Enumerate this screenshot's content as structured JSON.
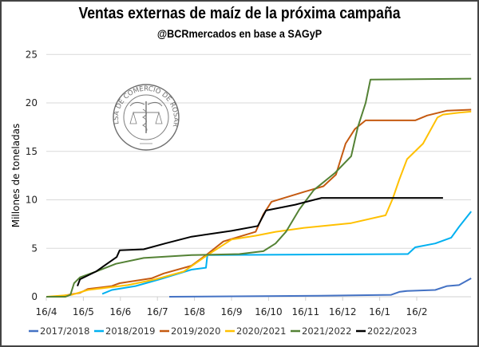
{
  "header": {
    "title": "Ventas externas de maíz de la próxima campaña",
    "subtitle": "@BCRmercados en base a SAGyP"
  },
  "logo": {
    "text": "BOLSA DE COMERCIO DE ROSARIO"
  },
  "chart_data": {
    "type": "line",
    "title": "Ventas externas de maíz de la próxima campaña",
    "subtitle": "@BCRmercados en base a SAGyP",
    "xlabel": "",
    "ylabel": "Millones de toneladas",
    "x_unit": "months since 16/4",
    "xlim": [
      0,
      11.45
    ],
    "ylim": [
      0,
      25
    ],
    "x_ticks": [
      0,
      1,
      2,
      3,
      4,
      5,
      6,
      7,
      8,
      9,
      10
    ],
    "x_tick_labels": [
      "16/4",
      "16/5",
      "16/6",
      "16/7",
      "16/8",
      "16/9",
      "16/10",
      "16/11",
      "16/12",
      "16/1",
      "16/2"
    ],
    "y_ticks": [
      0,
      5,
      10,
      15,
      20,
      25
    ],
    "y_tick_labels": [
      "0",
      "5",
      "10",
      "15",
      "20",
      "25"
    ],
    "grid": "horizontal",
    "legend_position": "bottom",
    "series": [
      {
        "name": "2017/2018",
        "color": "#4472C4",
        "x": [
          3.32,
          7.37,
          9.31,
          9.53,
          9.74,
          10.5,
          10.82,
          11.14,
          11.47
        ],
        "y": [
          0.0,
          0.1,
          0.2,
          0.5,
          0.6,
          0.7,
          1.1,
          1.2,
          1.9
        ]
      },
      {
        "name": "2018/2019",
        "color": "#00B0F0",
        "x": [
          1.51,
          1.77,
          2.41,
          3.06,
          3.92,
          4.31,
          4.35,
          9.76,
          9.96,
          10.5,
          10.93,
          11.14,
          11.47
        ],
        "y": [
          0.3,
          0.7,
          1.1,
          1.8,
          2.8,
          3.0,
          4.3,
          4.4,
          5.1,
          5.5,
          6.1,
          7.2,
          8.8
        ]
      },
      {
        "name": "2019/2020",
        "color": "#C55A11",
        "x": [
          0.3,
          0.91,
          1.12,
          1.77,
          1.98,
          2.84,
          3.17,
          3.92,
          4.35,
          4.78,
          5.65,
          5.86,
          6.08,
          6.94,
          7.48,
          7.82,
          8.08,
          8.33,
          8.62,
          9.96,
          10.28,
          10.82,
          11.47
        ],
        "y": [
          0.0,
          0.4,
          0.8,
          1.1,
          1.4,
          1.9,
          2.4,
          3.2,
          4.4,
          5.7,
          6.7,
          8.5,
          9.8,
          10.8,
          11.4,
          12.6,
          15.8,
          17.3,
          18.2,
          18.2,
          18.7,
          19.2,
          19.3
        ]
      },
      {
        "name": "2020/2021",
        "color": "#FFC000",
        "x": [
          0.0,
          0.69,
          1.12,
          2.2,
          2.95,
          3.71,
          4.35,
          5.0,
          5.65,
          6.19,
          6.94,
          8.23,
          9.16,
          9.35,
          9.53,
          9.74,
          10.17,
          10.56,
          10.71,
          11.14,
          11.47
        ],
        "y": [
          0.0,
          0.2,
          0.7,
          1.2,
          1.8,
          2.6,
          4.3,
          5.9,
          6.3,
          6.7,
          7.1,
          7.6,
          8.4,
          10.1,
          12.1,
          14.2,
          15.8,
          18.5,
          18.8,
          19.0,
          19.1
        ]
      },
      {
        "name": "2021/2022",
        "color": "#548235",
        "x": [
          0.0,
          0.52,
          0.65,
          0.75,
          0.91,
          1.34,
          1.88,
          2.63,
          3.92,
          5.21,
          5.86,
          6.19,
          6.47,
          6.83,
          7.22,
          7.8,
          8.23,
          8.41,
          8.62,
          8.75,
          11.47
        ],
        "y": [
          0.0,
          0.0,
          0.2,
          1.4,
          2.0,
          2.6,
          3.4,
          4.0,
          4.3,
          4.4,
          4.7,
          5.5,
          6.7,
          9.0,
          11.0,
          12.8,
          14.5,
          17.5,
          20.0,
          22.4,
          22.5
        ]
      },
      {
        "name": "2022/2023",
        "color": "#000000",
        "x": [
          0.84,
          0.91,
          1.34,
          1.9,
          1.98,
          2.63,
          3.21,
          3.92,
          5.0,
          5.71,
          5.93,
          6.72,
          7.43,
          10.71
        ],
        "y": [
          1.1,
          1.8,
          2.6,
          4.1,
          4.8,
          4.9,
          5.5,
          6.2,
          6.8,
          7.3,
          8.9,
          9.5,
          10.2,
          10.2
        ]
      }
    ]
  }
}
